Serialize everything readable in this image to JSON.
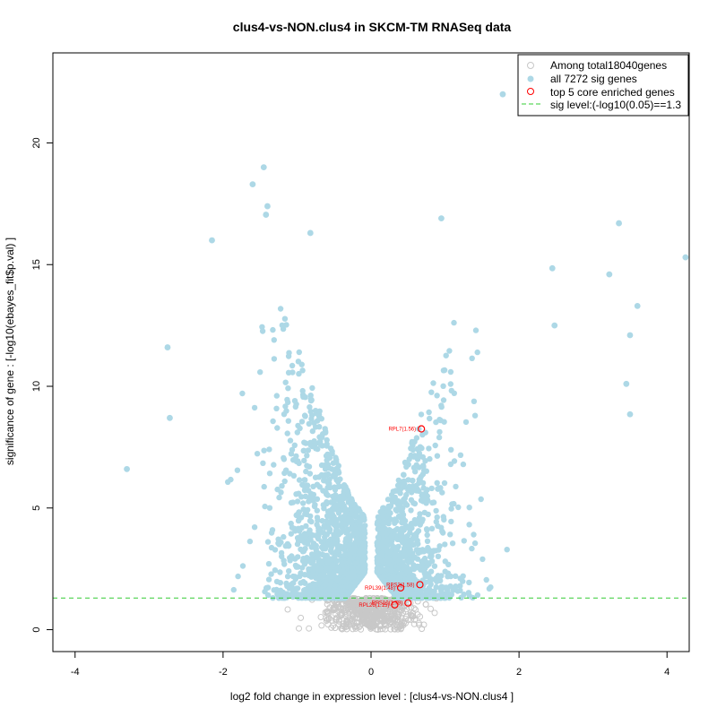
{
  "chart_data": {
    "type": "scatter",
    "title": "clus4-vs-NON.clus4 in SKCM-TM RNASeq data",
    "xlabel": "log2 fold change in expression level : [clus4-vs-NON.clus4 ]",
    "ylabel": "significance of gene : [-log10(ebayes_fit$p.val) ]",
    "xlim": [
      -4.3,
      4.3
    ],
    "ylim": [
      -0.9,
      23.7
    ],
    "x_ticks": [
      -4,
      -2,
      0,
      2,
      4
    ],
    "y_ticks": [
      0,
      5,
      10,
      15,
      20
    ],
    "sig_level": 1.3,
    "colors": {
      "all_genes": "#c8c8c8",
      "sig_genes": "#add8e6",
      "core_genes": "#ff0000",
      "sig_line": "#33cc33"
    },
    "legend": {
      "position": "top-right",
      "entries": [
        {
          "label": "Among total18040genes",
          "marker": "open-gray-circle"
        },
        {
          "label": "all 7272 sig genes",
          "marker": "filled-lightblue-circle"
        },
        {
          "label": "top 5 core enriched genes",
          "marker": "open-red-circle"
        },
        {
          "label": "sig level:(-log10(0.05)==1.3",
          "marker": "green-dashed-line"
        }
      ]
    },
    "highlighted_points": [
      {
        "x": 1.78,
        "y": 22.0
      },
      {
        "x": 4.25,
        "y": 15.3
      },
      {
        "x": -3.3,
        "y": 6.6
      },
      {
        "x": -1.45,
        "y": 19.0
      },
      {
        "x": -1.6,
        "y": 18.3
      },
      {
        "x": -1.4,
        "y": 17.4
      },
      {
        "x": -1.42,
        "y": 17.05
      },
      {
        "x": -2.15,
        "y": 16.0
      },
      {
        "x": -0.82,
        "y": 16.3
      },
      {
        "x": 0.95,
        "y": 16.9
      },
      {
        "x": 3.35,
        "y": 16.7
      },
      {
        "x": -2.75,
        "y": 11.6
      },
      {
        "x": -2.72,
        "y": 8.7
      },
      {
        "x": 3.22,
        "y": 14.6
      },
      {
        "x": 3.6,
        "y": 13.3
      },
      {
        "x": 3.5,
        "y": 12.1
      },
      {
        "x": 3.45,
        "y": 10.1
      },
      {
        "x": 3.5,
        "y": 8.85
      },
      {
        "x": 2.45,
        "y": 14.85
      },
      {
        "x": 2.48,
        "y": 12.5
      }
    ],
    "core_genes": [
      {
        "label": "RPL7(1.56)",
        "x": 0.68,
        "y": 8.25
      },
      {
        "label": "RPS2(1.58)",
        "x": 0.66,
        "y": 1.85
      },
      {
        "label": "RPL39(1.48)",
        "x": 0.4,
        "y": 1.72
      },
      {
        "label": "RPS10(1.79)",
        "x": 0.5,
        "y": 1.1
      },
      {
        "label": "RPL26(1.15)",
        "x": 0.32,
        "y": 1.02
      }
    ]
  }
}
